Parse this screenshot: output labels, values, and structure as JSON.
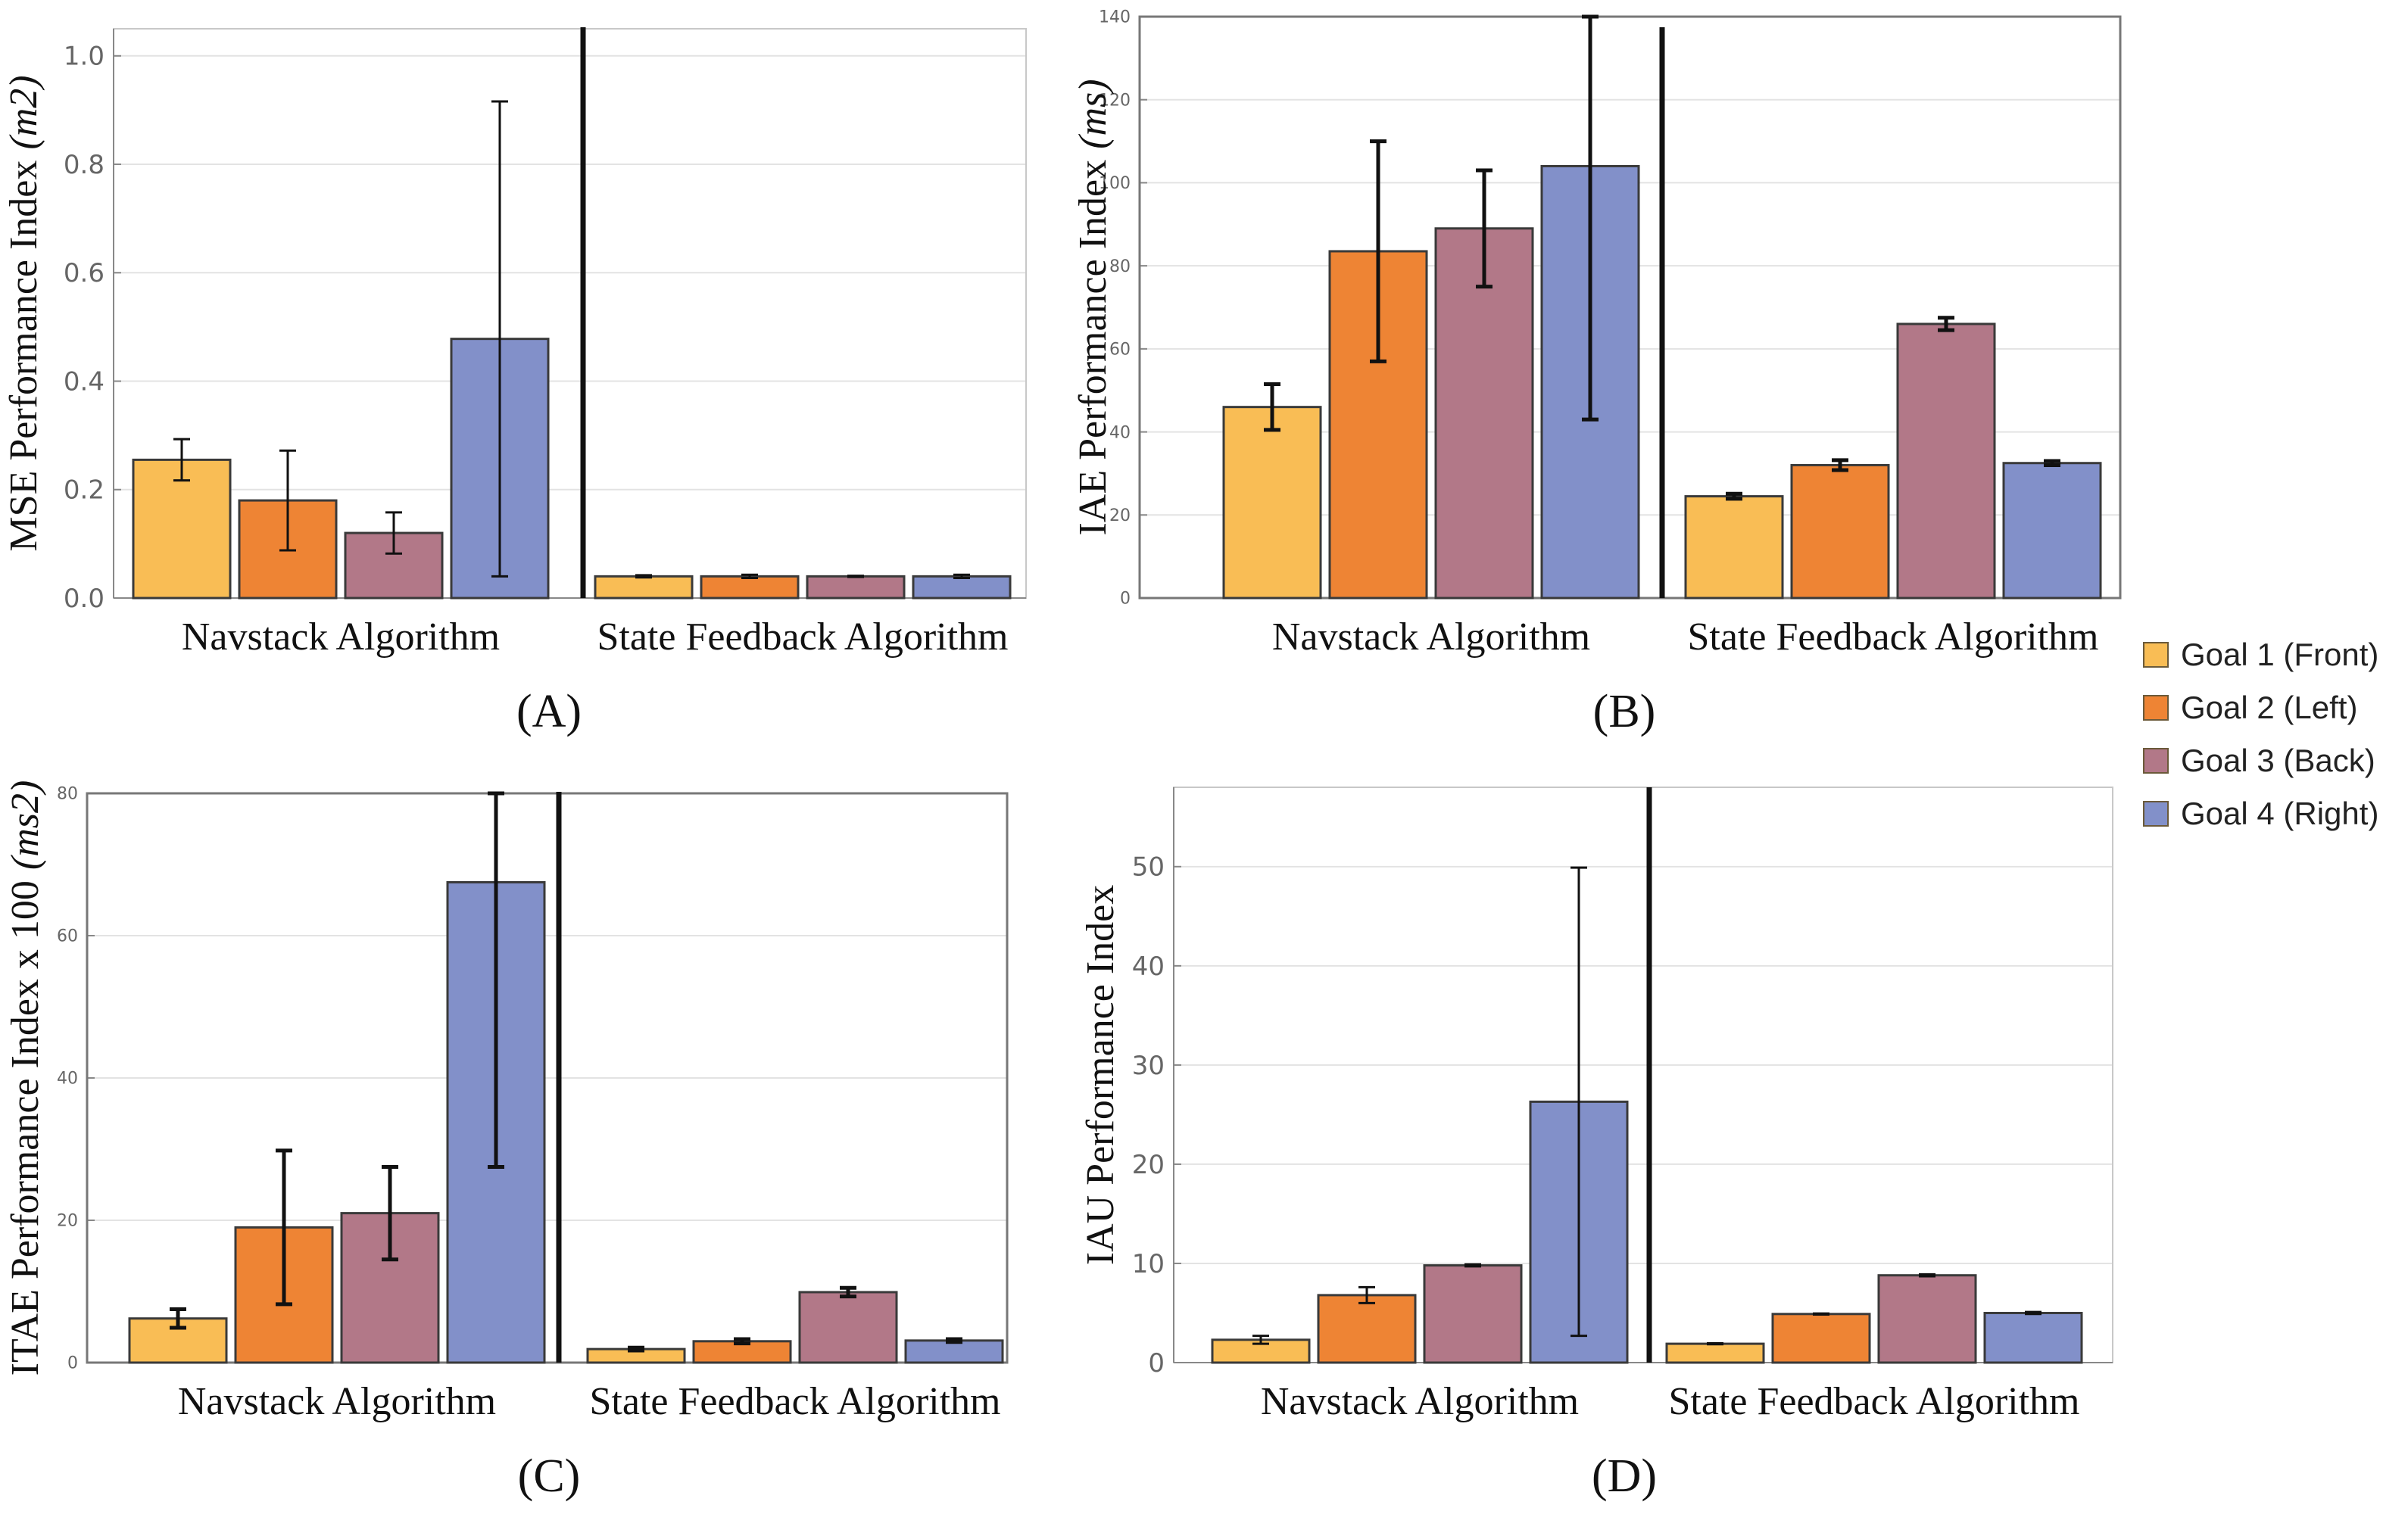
{
  "legend": [
    {
      "label": "Goal 1 (Front)",
      "color": "#f9bd55"
    },
    {
      "label": "Goal 2 (Left)",
      "color": "#ee8434"
    },
    {
      "label": "Goal 3 (Back)",
      "color": "#b27888"
    },
    {
      "label": "Goal 4 (Right)",
      "color": "#8290c9"
    }
  ],
  "chart_data": [
    {
      "type": "bar",
      "panel_label": "(A)",
      "ylabel": "MSE Performance Index",
      "ylabel_unit": "(m2)",
      "ylim": [
        0,
        1.05
      ],
      "yticks": [
        "0.0",
        "0.2",
        "0.4",
        "0.6",
        "0.8",
        "1.0"
      ],
      "ytick_values": [
        0,
        0.2,
        0.4,
        0.6,
        0.8,
        1.0
      ],
      "groups": [
        "Navstack Algorithm",
        "State Feedback Algorithm"
      ],
      "series": [
        {
          "name": "Goal 1 (Front)",
          "values": [
            0.255,
            0.04
          ],
          "errors": [
            0.038,
            0.002
          ]
        },
        {
          "name": "Goal 2 (Left)",
          "values": [
            0.18,
            0.04
          ],
          "errors": [
            0.092,
            0.003
          ]
        },
        {
          "name": "Goal 3 (Back)",
          "values": [
            0.12,
            0.04
          ],
          "errors": [
            0.038,
            0.001
          ]
        },
        {
          "name": "Goal 4 (Right)",
          "values": [
            0.478,
            0.04
          ],
          "errors": [
            0.438,
            0.003
          ]
        }
      ],
      "grid": true
    },
    {
      "type": "bar",
      "panel_label": "(B)",
      "ylabel": "IAE Performance Index",
      "ylabel_unit": "(ms)",
      "ylim": [
        0,
        140
      ],
      "yticks": [
        "0",
        "20",
        "40",
        "60",
        "80",
        "100",
        "120",
        "140"
      ],
      "ytick_values": [
        0,
        20,
        40,
        60,
        80,
        100,
        120,
        140
      ],
      "groups": [
        "Navstack Algorithm",
        "State Feedback Algorithm"
      ],
      "series": [
        {
          "name": "Goal 1 (Front)",
          "values": [
            46,
            24.5
          ],
          "errors": [
            5.5,
            0.6
          ]
        },
        {
          "name": "Goal 2 (Left)",
          "values": [
            83.5,
            32
          ],
          "errors": [
            26.5,
            1.2
          ]
        },
        {
          "name": "Goal 3 (Back)",
          "values": [
            89,
            66
          ],
          "errors": [
            14,
            1.5
          ]
        },
        {
          "name": "Goal 4 (Right)",
          "values": [
            104,
            32.5
          ],
          "errors": [
            61,
            0.5
          ]
        }
      ],
      "grid": true
    },
    {
      "type": "bar",
      "panel_label": "(C)",
      "ylabel": "ITAE Performance Index x 100",
      "ylabel_unit": "(ms2)",
      "ylim": [
        0,
        80
      ],
      "yticks": [
        "0",
        "20",
        "40",
        "60",
        "80"
      ],
      "ytick_values": [
        0,
        20,
        40,
        60,
        80
      ],
      "groups": [
        "Navstack Algorithm",
        "State Feedback Algorithm"
      ],
      "series": [
        {
          "name": "Goal 1 (Front)",
          "values": [
            6.2,
            1.9
          ],
          "errors": [
            1.3,
            0.2
          ]
        },
        {
          "name": "Goal 2 (Left)",
          "values": [
            19,
            3
          ],
          "errors": [
            10.8,
            0.3
          ]
        },
        {
          "name": "Goal 3 (Back)",
          "values": [
            21,
            9.9
          ],
          "errors": [
            6.5,
            0.6
          ]
        },
        {
          "name": "Goal 4 (Right)",
          "values": [
            67.5,
            3.1
          ],
          "errors": [
            40,
            0.2
          ]
        }
      ],
      "grid": true
    },
    {
      "type": "bar",
      "panel_label": "(D)",
      "ylabel": "IAU Performance Index",
      "ylabel_unit": "",
      "ylim": [
        0,
        58
      ],
      "yticks": [
        "0",
        "10",
        "20",
        "30",
        "40",
        "50"
      ],
      "ytick_values": [
        0,
        10,
        20,
        30,
        40,
        50
      ],
      "groups": [
        "Navstack Algorithm",
        "State Feedback Algorithm"
      ],
      "series": [
        {
          "name": "Goal 1 (Front)",
          "values": [
            2.3,
            1.9
          ],
          "errors": [
            0.4,
            0.05
          ]
        },
        {
          "name": "Goal 2 (Left)",
          "values": [
            6.8,
            4.9
          ],
          "errors": [
            0.8,
            0.05
          ]
        },
        {
          "name": "Goal 3 (Back)",
          "values": [
            9.8,
            8.8
          ],
          "errors": [
            0.1,
            0.1
          ]
        },
        {
          "name": "Goal 4 (Right)",
          "values": [
            26.3,
            5
          ],
          "errors": [
            23.6,
            0.1
          ]
        }
      ],
      "grid": true
    }
  ]
}
